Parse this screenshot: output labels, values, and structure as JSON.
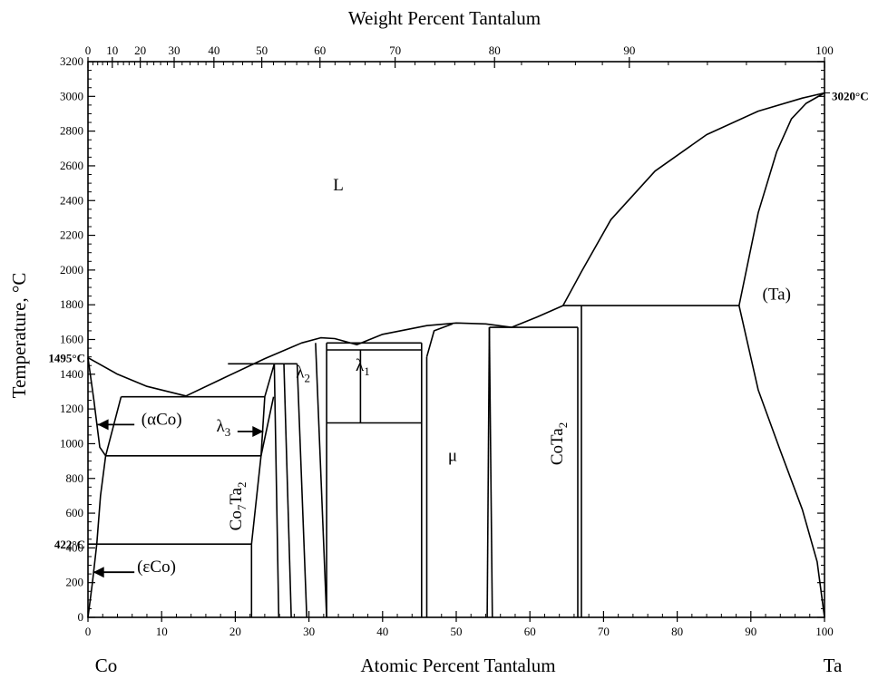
{
  "chart_data": {
    "type": "line",
    "title": "",
    "xlabel": "Atomic Percent Tantalum",
    "x2label": "Weight Percent Tantalum",
    "ylabel": "Temperature, °C",
    "xlim": [
      0,
      100
    ],
    "ylim": [
      0,
      3200
    ],
    "grid": false,
    "x_ticks": [
      0,
      10,
      20,
      30,
      40,
      50,
      60,
      70,
      80,
      90,
      100
    ],
    "x_tick_labels": [
      "0",
      "10",
      "20",
      "30",
      "40",
      "50",
      "60",
      "70",
      "80",
      "90",
      "100"
    ],
    "x2_ticks": [
      {
        "label": "0",
        "at": 0
      },
      {
        "label": "10",
        "at": 3.3
      },
      {
        "label": "20",
        "at": 7.1
      },
      {
        "label": "30",
        "at": 11.7
      },
      {
        "label": "40",
        "at": 17.1
      },
      {
        "label": "50",
        "at": 23.6
      },
      {
        "label": "60",
        "at": 31.5
      },
      {
        "label": "70",
        "at": 41.7
      },
      {
        "label": "80",
        "at": 55.2
      },
      {
        "label": "90",
        "at": 73.5
      },
      {
        "label": "100",
        "at": 100
      }
    ],
    "y_ticks": [
      0,
      200,
      400,
      600,
      800,
      1000,
      1200,
      1400,
      1600,
      1800,
      2000,
      2200,
      2400,
      2600,
      2800,
      3000,
      3200
    ],
    "element_labels": {
      "left": "Co",
      "right": "Ta"
    },
    "annotations": [
      {
        "text": "1495°C",
        "side": "left",
        "y": 1495
      },
      {
        "text": "422°C",
        "side": "left",
        "y": 422
      },
      {
        "text": "3020°C",
        "side": "right",
        "y": 3020
      }
    ],
    "phase_labels": [
      {
        "id": "L",
        "text": "L",
        "x": 34,
        "y": 2460
      },
      {
        "id": "ta",
        "text": "(Ta)",
        "x": 93.5,
        "y": 1830
      },
      {
        "id": "mu",
        "text": "μ",
        "x": 49.5,
        "y": 900
      },
      {
        "id": "acoq",
        "text": "(αCo)",
        "x": 10,
        "y": 1110
      },
      {
        "id": "ecoq",
        "text": "(εCo)",
        "x": 9.3,
        "y": 260
      },
      {
        "id": "lambda1",
        "text": "λ",
        "sub": "1",
        "x": 37.3,
        "y": 1420
      },
      {
        "id": "lambda2",
        "text": "λ",
        "sub": "2",
        "x": 29.2,
        "y": 1380
      },
      {
        "id": "lambda3",
        "text": "λ",
        "sub": "3",
        "x": 18.4,
        "y": 1070
      },
      {
        "id": "co7ta2",
        "text": "Co",
        "sub": "7",
        "text2": "Ta",
        "sub2": "2",
        "x": 20.8,
        "y": 640,
        "rotate": -90
      },
      {
        "id": "cota2",
        "text": "CoTa",
        "sub": "2",
        "x": 64.4,
        "y": 1000,
        "rotate": -90
      }
    ],
    "series": [
      {
        "kind": "liquidus",
        "points": [
          [
            0,
            1495
          ],
          [
            4,
            1400
          ],
          [
            8,
            1330
          ],
          [
            13.3,
            1275
          ],
          [
            18,
            1370
          ],
          [
            24,
            1490
          ],
          [
            29,
            1580
          ],
          [
            31.6,
            1610
          ],
          [
            33.5,
            1605
          ],
          [
            36.5,
            1570
          ],
          [
            40,
            1630
          ],
          [
            46,
            1680
          ],
          [
            50,
            1695
          ],
          [
            54,
            1690
          ],
          [
            57.5,
            1670
          ],
          [
            61,
            1730
          ],
          [
            64.5,
            1795
          ],
          [
            67,
            1990
          ],
          [
            71,
            2290
          ],
          [
            77,
            2570
          ],
          [
            84,
            2780
          ],
          [
            91,
            2915
          ],
          [
            97,
            2990
          ],
          [
            100,
            3020
          ]
        ]
      },
      {
        "kind": "solidus",
        "points": [
          [
            88.4,
            1795
          ],
          [
            91,
            2330
          ],
          [
            93.5,
            2680
          ],
          [
            95.5,
            2870
          ],
          [
            97.5,
            2960
          ],
          [
            100,
            3020
          ]
        ]
      },
      {
        "kind": "solvus",
        "points": [
          [
            88.4,
            1795
          ],
          [
            91,
            1310
          ],
          [
            94,
            960
          ],
          [
            97,
            620
          ],
          [
            99,
            320
          ],
          [
            100,
            0
          ]
        ]
      },
      {
        "kind": "alpha-co",
        "points": [
          [
            0,
            1495
          ],
          [
            0.8,
            1250
          ],
          [
            1.6,
            980
          ],
          [
            2.4,
            930
          ]
        ]
      },
      {
        "kind": "eps-co",
        "points": [
          [
            0,
            0
          ],
          [
            0.6,
            200
          ],
          [
            1.2,
            422
          ],
          [
            1.7,
            700
          ],
          [
            2.4,
            930
          ]
        ]
      },
      {
        "kind": "lambda3-region",
        "points": [
          [
            4.5,
            1270
          ],
          [
            2.4,
            930
          ]
        ]
      },
      {
        "kind": "lambda3-region",
        "points": [
          [
            24,
            1270
          ],
          [
            23.5,
            930
          ],
          [
            22.2,
            422
          ],
          [
            22.2,
            0
          ]
        ]
      },
      {
        "kind": "co7ta2",
        "points": [
          [
            23.5,
            930
          ],
          [
            25.2,
            1270
          ]
        ]
      },
      {
        "kind": "co7ta2",
        "points": [
          [
            24,
            1270
          ],
          [
            25.3,
            1460
          ],
          [
            25.9,
            0
          ]
        ]
      },
      {
        "kind": "lambda2",
        "points": [
          [
            26.6,
            1460
          ],
          [
            27.6,
            0
          ]
        ]
      },
      {
        "kind": "lambda2",
        "points": [
          [
            28.4,
            1460
          ],
          [
            29.7,
            0
          ]
        ]
      },
      {
        "kind": "lambda2",
        "points": [
          [
            30.9,
            1580
          ],
          [
            32.4,
            0
          ]
        ]
      },
      {
        "kind": "lambda1",
        "points": [
          [
            32.4,
            1580
          ],
          [
            32.4,
            0
          ]
        ]
      },
      {
        "kind": "lambda1",
        "points": [
          [
            37,
            1540
          ],
          [
            37,
            1120
          ]
        ]
      },
      {
        "kind": "mu",
        "points": [
          [
            45.3,
            1580
          ],
          [
            45.3,
            0
          ]
        ]
      },
      {
        "kind": "mu",
        "points": [
          [
            46,
            1500
          ],
          [
            46,
            0
          ]
        ]
      },
      {
        "kind": "mu",
        "points": [
          [
            46,
            1500
          ],
          [
            47,
            1650
          ],
          [
            49.5,
            1690
          ]
        ]
      },
      {
        "kind": "mu",
        "points": [
          [
            54.5,
            1670
          ],
          [
            54.2,
            0
          ]
        ]
      },
      {
        "kind": "cota2",
        "points": [
          [
            54.5,
            1670
          ],
          [
            54.9,
            0
          ]
        ]
      },
      {
        "kind": "cota2",
        "points": [
          [
            66.5,
            1670
          ],
          [
            66.5,
            0
          ]
        ]
      },
      {
        "kind": "cota2",
        "points": [
          [
            67,
            1795
          ],
          [
            67,
            0
          ]
        ]
      },
      {
        "kind": "isotherm",
        "points": [
          [
            24,
            1270
          ],
          [
            4.5,
            1270
          ]
        ]
      },
      {
        "kind": "isotherm",
        "points": [
          [
            2.4,
            930
          ],
          [
            23.5,
            930
          ]
        ]
      },
      {
        "kind": "isotherm",
        "points": [
          [
            0,
            422
          ],
          [
            22.2,
            422
          ]
        ]
      },
      {
        "kind": "isotherm",
        "points": [
          [
            19,
            1460
          ],
          [
            28.4,
            1460
          ]
        ]
      },
      {
        "kind": "isotherm",
        "points": [
          [
            32.4,
            1580
          ],
          [
            45.3,
            1580
          ]
        ]
      },
      {
        "kind": "isotherm",
        "points": [
          [
            32.4,
            1540
          ],
          [
            45.3,
            1540
          ]
        ]
      },
      {
        "kind": "isotherm",
        "points": [
          [
            32.4,
            1120
          ],
          [
            45.3,
            1120
          ]
        ]
      },
      {
        "kind": "isotherm",
        "points": [
          [
            54.5,
            1670
          ],
          [
            66.5,
            1670
          ]
        ]
      },
      {
        "kind": "isotherm",
        "points": [
          [
            64.5,
            1795
          ],
          [
            88.4,
            1795
          ]
        ]
      }
    ],
    "arrows": [
      {
        "id": "arrow-aco",
        "from": [
          6.3,
          1110
        ],
        "to": [
          1.3,
          1110
        ]
      },
      {
        "id": "arrow-eco",
        "from": [
          6.3,
          260
        ],
        "to": [
          0.7,
          260
        ]
      },
      {
        "id": "arrow-l3",
        "from": [
          20.3,
          1070
        ],
        "to": [
          23.8,
          1070
        ]
      }
    ]
  }
}
